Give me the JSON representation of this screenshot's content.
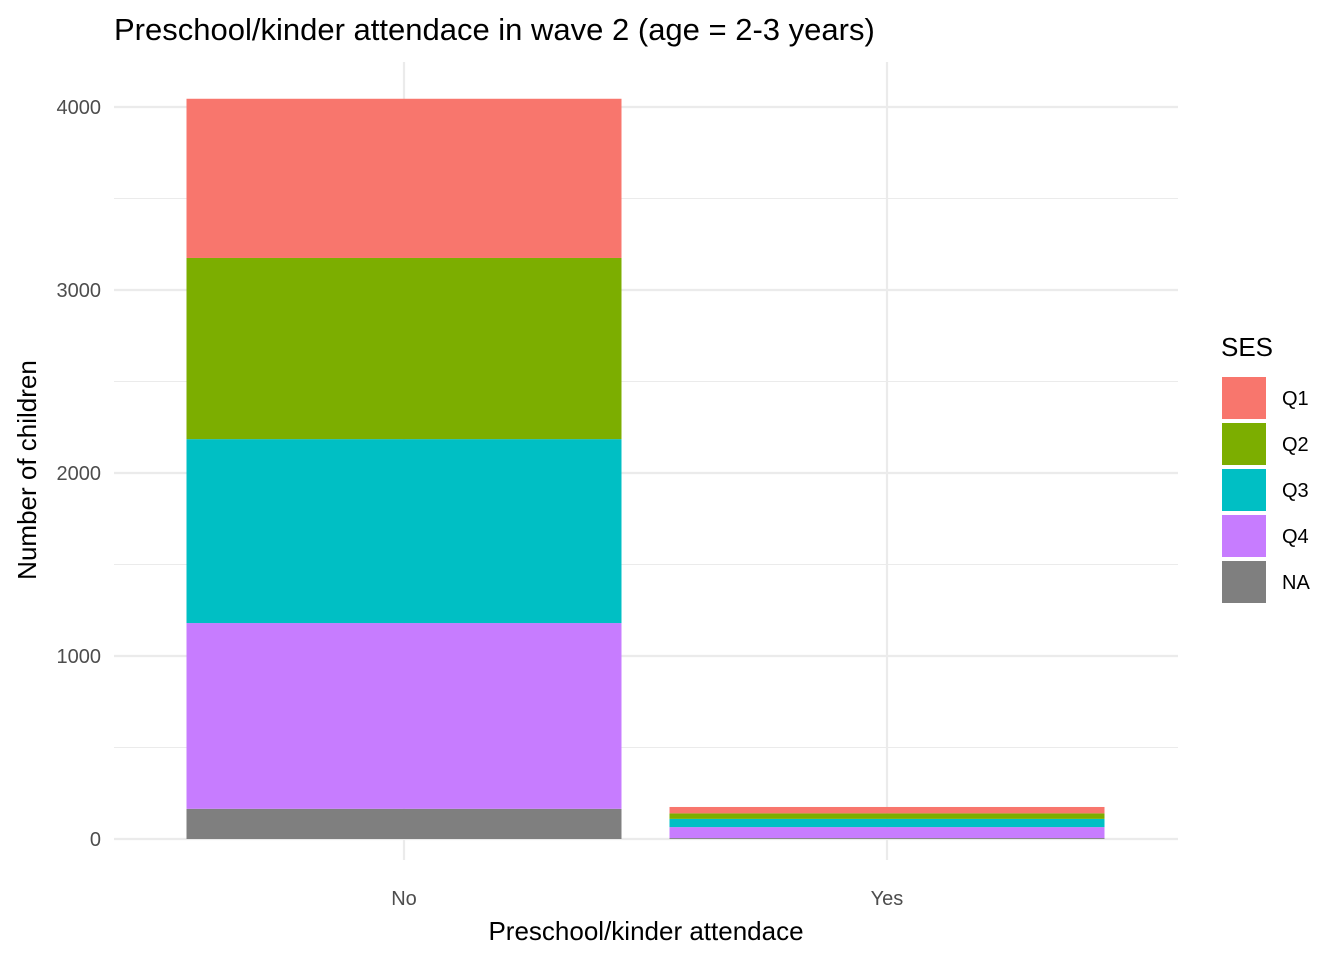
{
  "chart_data": {
    "type": "bar",
    "stacked": true,
    "title": "Preschool/kinder attendace in wave 2 (age = 2-3 years)",
    "xlabel": "Preschool/kinder attendace",
    "ylabel": "Number of children",
    "categories": [
      "No",
      "Yes"
    ],
    "ylim": [
      0,
      4300
    ],
    "yticks": [
      0,
      1000,
      2000,
      3000,
      4000
    ],
    "grid": true,
    "legend": {
      "title": "SES",
      "position": "right"
    },
    "series": [
      {
        "name": "Q1",
        "color": "#F8766D",
        "values": [
          870,
          35
        ]
      },
      {
        "name": "Q2",
        "color": "#7CAE00",
        "values": [
          990,
          30
        ]
      },
      {
        "name": "Q3",
        "color": "#00BFC4",
        "values": [
          1005,
          45
        ]
      },
      {
        "name": "Q4",
        "color": "#C77CFF",
        "values": [
          1015,
          60
        ]
      },
      {
        "name": "NA",
        "color": "#7F7F7F",
        "values": [
          165,
          5
        ]
      }
    ]
  }
}
